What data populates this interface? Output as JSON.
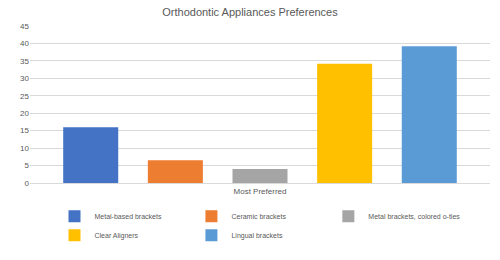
{
  "chart_data": {
    "type": "bar",
    "title": "Orthodontic Appliances Preferences",
    "categories": [
      "Most Preferred"
    ],
    "series": [
      {
        "name": "Metal-based brackets",
        "color": "#4472c4",
        "values": [
          16
        ]
      },
      {
        "name": "Ceramic brackets",
        "color": "#ed7d31",
        "values": [
          6.5
        ]
      },
      {
        "name": "Metal brackets, colored o-ties",
        "color": "#a5a5a5",
        "values": [
          4
        ]
      },
      {
        "name": "Clear Aligners",
        "color": "#ffc000",
        "values": [
          34.2
        ]
      },
      {
        "name": "Lingual brackets",
        "color": "#5b9bd5",
        "values": [
          39.2
        ]
      }
    ],
    "ylim": [
      0,
      45
    ],
    "yticks": [
      0,
      5,
      10,
      15,
      20,
      25,
      30,
      35,
      40,
      45
    ],
    "grid": true,
    "legend": "bottom"
  }
}
